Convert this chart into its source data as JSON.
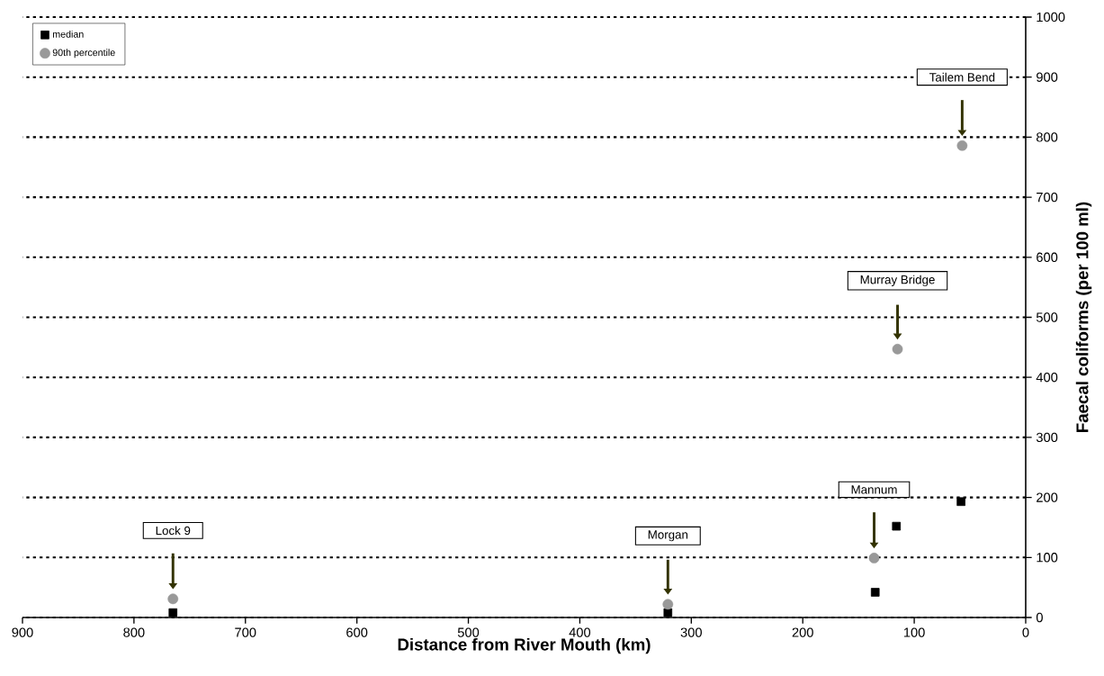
{
  "chart_data": {
    "type": "scatter",
    "xlabel": "Distance from River Mouth (km)",
    "ylabel": "Faecal coliforms (per 100 ml)",
    "xlim": [
      900,
      0
    ],
    "xticks": [
      900,
      800,
      700,
      600,
      500,
      400,
      300,
      200,
      100,
      0
    ],
    "ylim": [
      0,
      1000
    ],
    "yticks": [
      0,
      100,
      200,
      300,
      400,
      500,
      600,
      700,
      800,
      900,
      1000
    ],
    "grid": "y",
    "legend": "top left",
    "series": [
      {
        "name": "median",
        "color": "#000000",
        "marker": "square",
        "x": [
          765,
          321,
          135,
          116,
          58
        ],
        "values": [
          8,
          8,
          42,
          152,
          193
        ]
      },
      {
        "name": "90th percentile",
        "color": "#999999",
        "marker": "circle",
        "x": [
          765,
          321,
          136,
          115,
          57
        ],
        "values": [
          31,
          22,
          99,
          447,
          786
        ]
      }
    ],
    "annotations": [
      "Lock 9",
      "Morgan",
      "Mannum",
      "Murray Bridge",
      "Tailem Bend"
    ]
  }
}
